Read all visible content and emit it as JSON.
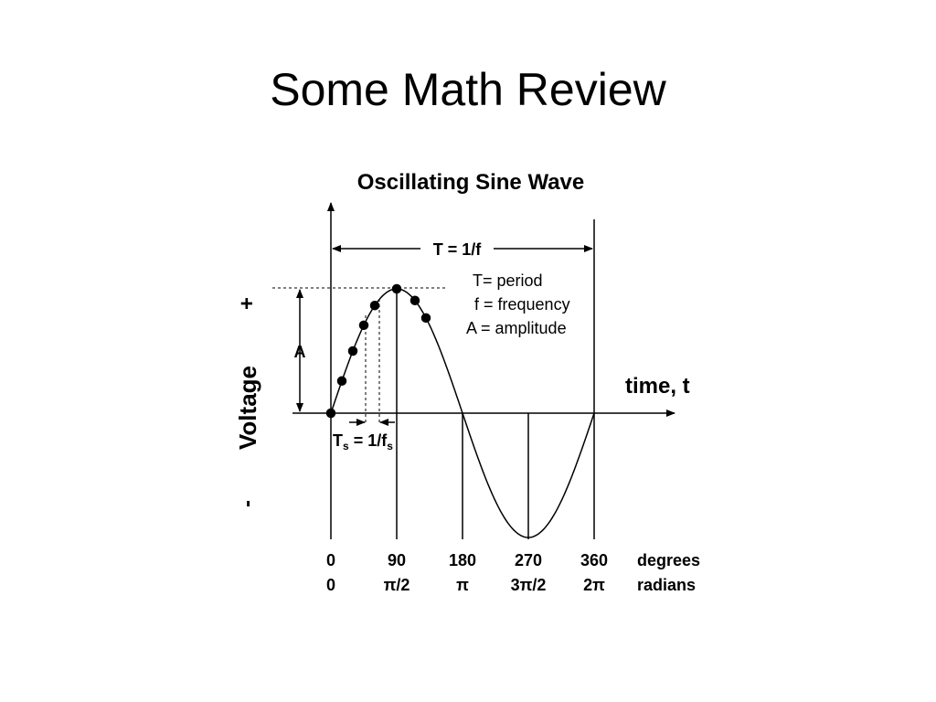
{
  "header": {
    "title": "Some Math Review"
  },
  "diagram": {
    "title": "Oscillating Sine Wave",
    "period_label": "T = 1/f",
    "legend": [
      "T= period",
      "f = frequency",
      "A = amplitude"
    ],
    "x_axis_label": "time, t",
    "y_axis_label": "Voltage",
    "y_plus": "+",
    "y_minus": "-",
    "amplitude_label": "A",
    "sampling_label": [
      "T",
      "s",
      " = 1/f",
      "s"
    ],
    "degrees": [
      "0",
      "90",
      "180",
      "270",
      "360"
    ],
    "degrees_label": "degrees",
    "radians": [
      "0",
      "π/2",
      "π",
      "3π/2",
      "2π"
    ],
    "radians_label": "radians"
  }
}
